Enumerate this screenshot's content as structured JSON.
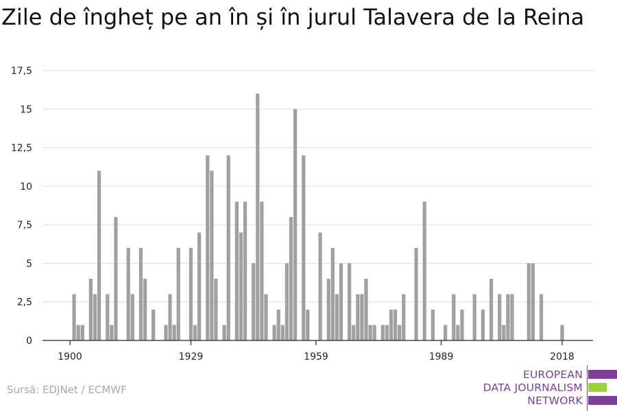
{
  "title": "Zile de îngheț pe an în și în jurul Talavera de la Reina",
  "source": "Sursă: EDJNet / ECMWF",
  "logo": {
    "lines": [
      "EUROPEAN",
      "DATA JOURNALISM",
      "NETWORK"
    ],
    "colors": {
      "purple": "#7b3f98",
      "green": "#9bd23c"
    }
  },
  "colors": {
    "bar": "#a0a0a0",
    "grid": "#dddddd",
    "axis": "#222222",
    "text": "#222222"
  },
  "chart_data": {
    "type": "bar",
    "xlabel": "",
    "ylabel": "",
    "ylim": [
      0,
      17.5
    ],
    "yticks": [
      0,
      2.5,
      5,
      7.5,
      10,
      12.5,
      15,
      17.5
    ],
    "ytick_labels": [
      "0",
      "2,5",
      "5",
      "7,5",
      "10",
      "12,5",
      "15",
      "17,5"
    ],
    "xticks": [
      1900,
      1929,
      1959,
      1989,
      2018
    ],
    "xtick_labels": [
      "1900",
      "1929",
      "1959",
      "1989",
      "2018"
    ],
    "xlim": [
      1898,
      2024
    ],
    "grid": true,
    "categories": [
      1900,
      1901,
      1902,
      1903,
      1904,
      1905,
      1906,
      1907,
      1908,
      1909,
      1910,
      1911,
      1912,
      1913,
      1914,
      1915,
      1916,
      1917,
      1918,
      1919,
      1920,
      1921,
      1922,
      1923,
      1924,
      1925,
      1926,
      1927,
      1928,
      1929,
      1930,
      1931,
      1932,
      1933,
      1934,
      1935,
      1936,
      1937,
      1938,
      1939,
      1940,
      1941,
      1942,
      1943,
      1944,
      1945,
      1946,
      1947,
      1948,
      1949,
      1950,
      1951,
      1952,
      1953,
      1954,
      1955,
      1956,
      1957,
      1958,
      1959,
      1960,
      1961,
      1962,
      1963,
      1964,
      1965,
      1966,
      1967,
      1968,
      1969,
      1970,
      1971,
      1972,
      1973,
      1974,
      1975,
      1976,
      1977,
      1978,
      1979,
      1980,
      1981,
      1982,
      1983,
      1984,
      1985,
      1986,
      1987,
      1988,
      1989,
      1990,
      1991,
      1992,
      1993,
      1994,
      1995,
      1996,
      1997,
      1998,
      1999,
      2000,
      2001,
      2002,
      2003,
      2004,
      2005,
      2006,
      2007,
      2008,
      2009,
      2010,
      2011,
      2012,
      2013,
      2014,
      2015,
      2016,
      2017,
      2018,
      2019,
      2020
    ],
    "values": [
      0,
      3,
      1,
      1,
      0,
      4,
      3,
      11,
      0,
      3,
      1,
      8,
      0,
      0,
      6,
      3,
      0,
      6,
      4,
      0,
      2,
      0,
      0,
      1,
      3,
      1,
      6,
      0,
      0,
      6,
      1,
      7,
      0,
      12,
      11,
      4,
      0,
      1,
      12,
      0,
      9,
      7,
      9,
      0,
      5,
      16,
      9,
      3,
      0,
      1,
      2,
      1,
      5,
      8,
      15,
      0,
      12,
      2,
      0,
      0,
      7,
      0,
      4,
      6,
      3,
      5,
      0,
      5,
      1,
      3,
      3,
      4,
      1,
      1,
      0,
      1,
      1,
      2,
      2,
      1,
      3,
      0,
      0,
      6,
      0,
      9,
      0,
      2,
      0,
      0,
      1,
      0,
      3,
      1,
      2,
      0,
      0,
      3,
      0,
      2,
      0,
      4,
      0,
      3,
      1,
      3,
      3,
      0,
      0,
      0,
      5,
      5,
      0,
      3,
      0,
      0,
      0,
      0,
      1,
      0,
      0
    ]
  }
}
